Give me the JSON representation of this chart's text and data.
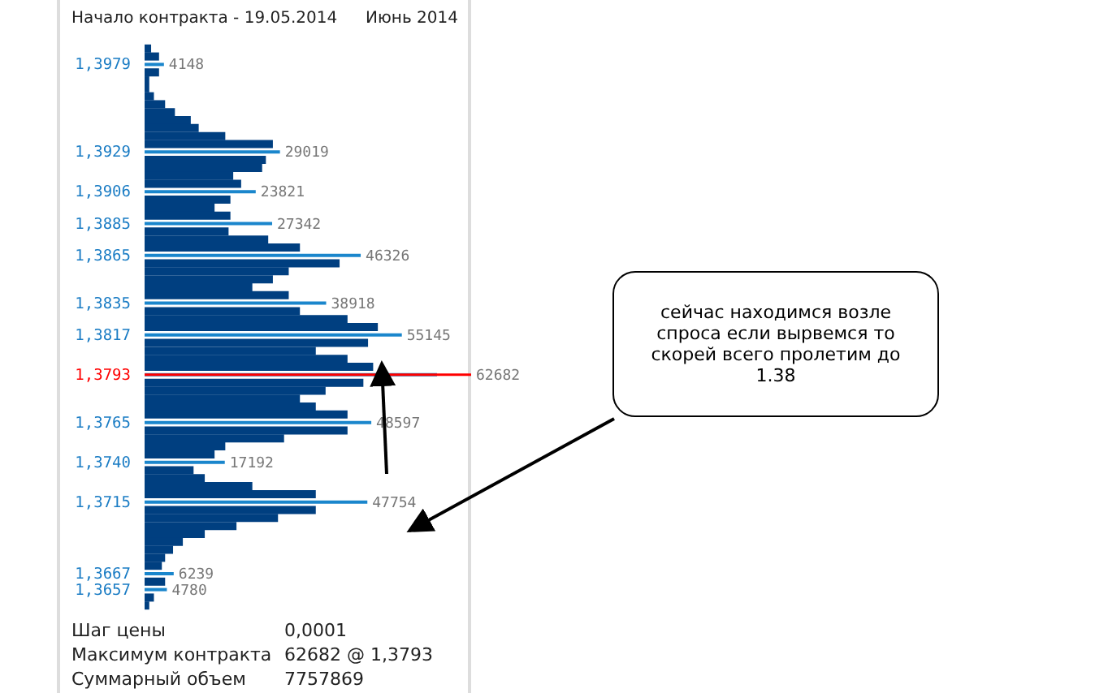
{
  "chart_data": {
    "type": "bar",
    "orientation": "horizontal",
    "title": "Начало контракта - 19.05.2014",
    "subtitle": "Июнь 2014",
    "annotations": [
      "Шаг цены\t0,0001",
      "Максимум контракта\t62682 @ 1,3793",
      "Суммарный объем\t7757869",
      "сейчас находимся возле спроса если вырвемся то скорей всего пролетим до 1.38"
    ],
    "categories": [
      null,
      null,
      "1,3979",
      null,
      null,
      null,
      null,
      null,
      null,
      null,
      null,
      null,
      null,
      "1,3929",
      null,
      null,
      null,
      null,
      "1,3906",
      null,
      null,
      null,
      "1,3885",
      null,
      null,
      null,
      "1,3865",
      null,
      null,
      null,
      null,
      null,
      "1,3835",
      null,
      null,
      null,
      "1,3817",
      null,
      null,
      null,
      null,
      "1,3793",
      null,
      null,
      null,
      null,
      null,
      "1,3765",
      null,
      null,
      null,
      null,
      "1,3740",
      null,
      null,
      null,
      null,
      "1,3715",
      null,
      null,
      null,
      null,
      null,
      null,
      null,
      null,
      "1,3667",
      null,
      "1,3657",
      null,
      null
    ],
    "values": [
      1400,
      3100,
      4148,
      3100,
      1000,
      1000,
      2000,
      4400,
      6500,
      9900,
      11600,
      17300,
      27500,
      29019,
      26000,
      25200,
      19000,
      20700,
      23821,
      18400,
      15000,
      18400,
      27342,
      18000,
      26500,
      33300,
      46326,
      41800,
      30900,
      27500,
      23100,
      30900,
      38918,
      33300,
      43500,
      50000,
      55145,
      47900,
      36700,
      43500,
      49000,
      62682,
      46900,
      38800,
      33300,
      36700,
      43500,
      48597,
      43500,
      29900,
      17300,
      15000,
      17192,
      10500,
      12900,
      23100,
      36700,
      47754,
      36700,
      28600,
      19700,
      12900,
      8200,
      6100,
      4400,
      3700,
      6239,
      4400,
      4780,
      2000,
      1000
    ],
    "value_labels": [
      null,
      null,
      "4148",
      null,
      null,
      null,
      null,
      null,
      null,
      null,
      null,
      null,
      null,
      "29019",
      null,
      null,
      null,
      null,
      "23821",
      null,
      null,
      null,
      "27342",
      null,
      null,
      null,
      "46326",
      null,
      null,
      null,
      null,
      null,
      "38918",
      null,
      null,
      null,
      "55145",
      null,
      null,
      null,
      null,
      "62682",
      null,
      null,
      null,
      null,
      null,
      "48597",
      null,
      null,
      null,
      null,
      "17192",
      null,
      null,
      null,
      null,
      "47754",
      null,
      null,
      null,
      null,
      null,
      null,
      null,
      null,
      "6239",
      null,
      "4780",
      null,
      null
    ],
    "colors": [
      "#003f80",
      "#003f80",
      "#1a86cc",
      "#003f80",
      "#003f80",
      "#003f80",
      "#003f80",
      "#003f80",
      "#003f80",
      "#003f80",
      "#003f80",
      "#003f80",
      "#003f80",
      "#1a86cc",
      "#003f80",
      "#003f80",
      "#003f80",
      "#003f80",
      "#1a86cc",
      "#003f80",
      "#003f80",
      "#003f80",
      "#1a86cc",
      "#003f80",
      "#003f80",
      "#003f80",
      "#1a86cc",
      "#003f80",
      "#003f80",
      "#003f80",
      "#003f80",
      "#003f80",
      "#1a86cc",
      "#003f80",
      "#003f80",
      "#003f80",
      "#1a86cc",
      "#003f80",
      "#003f80",
      "#003f80",
      "#003f80",
      "#1a86cc",
      "#003f80",
      "#003f80",
      "#003f80",
      "#003f80",
      "#003f80",
      "#1a86cc",
      "#003f80",
      "#003f80",
      "#003f80",
      "#003f80",
      "#1a86cc",
      "#003f80",
      "#003f80",
      "#003f80",
      "#003f80",
      "#1a86cc",
      "#003f80",
      "#003f80",
      "#003f80",
      "#003f80",
      "#003f80",
      "#003f80",
      "#003f80",
      "#003f80",
      "#1a86cc",
      "#003f80",
      "#1a86cc",
      "#003f80",
      "#003f80"
    ],
    "xlim": [
      0,
      70000
    ],
    "tick_labels": "y",
    "ref_lines": [
      {
        "axis": "y",
        "value": "1,3793",
        "color": "#ff0000"
      }
    ]
  }
}
